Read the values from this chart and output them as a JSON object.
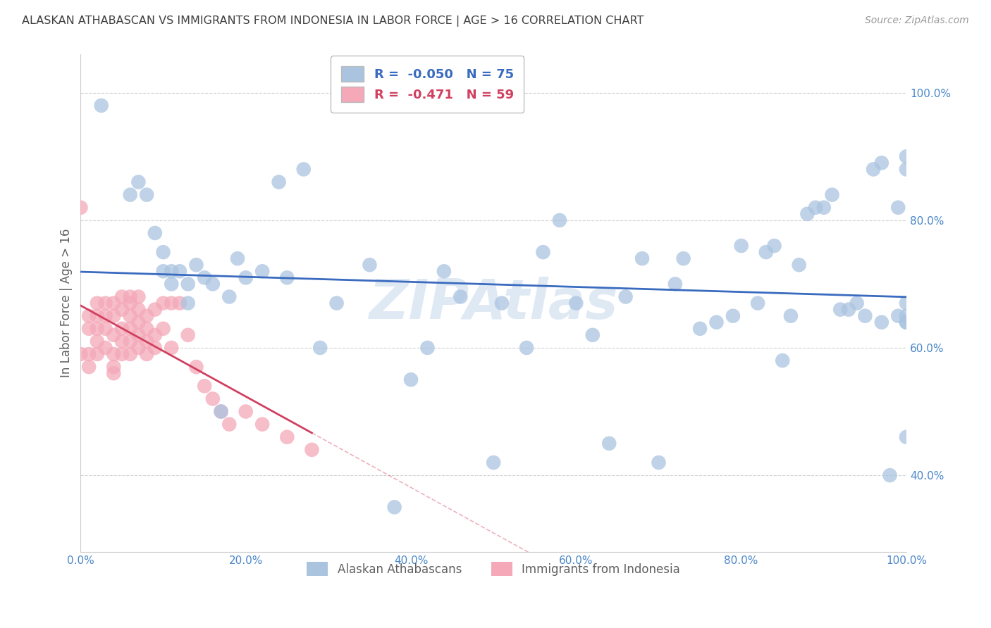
{
  "title": "ALASKAN ATHABASCAN VS IMMIGRANTS FROM INDONESIA IN LABOR FORCE | AGE > 16 CORRELATION CHART",
  "source": "Source: ZipAtlas.com",
  "ylabel": "In Labor Force | Age > 16",
  "watermark": "ZIPAtlas",
  "blue_R": -0.05,
  "blue_N": 75,
  "pink_R": -0.471,
  "pink_N": 59,
  "blue_color": "#aac4e0",
  "pink_color": "#f4a8b8",
  "blue_line_color": "#3a6bbf",
  "pink_line_color": "#d04060",
  "legend_blue_label": "Alaskan Athabascans",
  "legend_pink_label": "Immigrants from Indonesia",
  "xlim": [
    0.0,
    1.0
  ],
  "ylim": [
    0.28,
    1.06
  ],
  "yticks": [
    0.4,
    0.6,
    0.8,
    1.0
  ],
  "xticks": [
    0.0,
    0.2,
    0.4,
    0.6,
    0.8,
    1.0
  ],
  "blue_scatter_x": [
    0.025,
    0.06,
    0.07,
    0.08,
    0.09,
    0.1,
    0.1,
    0.11,
    0.11,
    0.12,
    0.13,
    0.13,
    0.14,
    0.15,
    0.16,
    0.17,
    0.18,
    0.19,
    0.2,
    0.22,
    0.24,
    0.25,
    0.27,
    0.29,
    0.31,
    0.35,
    0.38,
    0.4,
    0.42,
    0.44,
    0.46,
    0.5,
    0.51,
    0.54,
    0.56,
    0.58,
    0.6,
    0.62,
    0.64,
    0.66,
    0.68,
    0.7,
    0.72,
    0.73,
    0.75,
    0.77,
    0.79,
    0.8,
    0.82,
    0.83,
    0.84,
    0.85,
    0.86,
    0.87,
    0.88,
    0.89,
    0.9,
    0.91,
    0.92,
    0.93,
    0.94,
    0.95,
    0.96,
    0.97,
    0.97,
    0.98,
    0.99,
    0.99,
    1.0,
    1.0,
    1.0,
    1.0,
    1.0,
    1.0,
    1.0
  ],
  "blue_scatter_y": [
    0.98,
    0.84,
    0.86,
    0.84,
    0.78,
    0.75,
    0.72,
    0.72,
    0.7,
    0.72,
    0.7,
    0.67,
    0.73,
    0.71,
    0.7,
    0.5,
    0.68,
    0.74,
    0.71,
    0.72,
    0.86,
    0.71,
    0.88,
    0.6,
    0.67,
    0.73,
    0.35,
    0.55,
    0.6,
    0.72,
    0.68,
    0.42,
    0.67,
    0.6,
    0.75,
    0.8,
    0.67,
    0.62,
    0.45,
    0.68,
    0.74,
    0.42,
    0.7,
    0.74,
    0.63,
    0.64,
    0.65,
    0.76,
    0.67,
    0.75,
    0.76,
    0.58,
    0.65,
    0.73,
    0.81,
    0.82,
    0.82,
    0.84,
    0.66,
    0.66,
    0.67,
    0.65,
    0.88,
    0.89,
    0.64,
    0.4,
    0.65,
    0.82,
    0.46,
    0.67,
    0.64,
    0.65,
    0.88,
    0.9,
    0.64
  ],
  "pink_scatter_x": [
    0.0,
    0.0,
    0.01,
    0.01,
    0.01,
    0.01,
    0.02,
    0.02,
    0.02,
    0.02,
    0.02,
    0.03,
    0.03,
    0.03,
    0.03,
    0.04,
    0.04,
    0.04,
    0.04,
    0.04,
    0.04,
    0.05,
    0.05,
    0.05,
    0.05,
    0.05,
    0.06,
    0.06,
    0.06,
    0.06,
    0.06,
    0.06,
    0.07,
    0.07,
    0.07,
    0.07,
    0.07,
    0.08,
    0.08,
    0.08,
    0.08,
    0.09,
    0.09,
    0.09,
    0.1,
    0.1,
    0.11,
    0.11,
    0.12,
    0.13,
    0.14,
    0.15,
    0.16,
    0.17,
    0.18,
    0.2,
    0.22,
    0.25,
    0.28
  ],
  "pink_scatter_y": [
    0.82,
    0.59,
    0.65,
    0.63,
    0.59,
    0.57,
    0.67,
    0.65,
    0.63,
    0.61,
    0.59,
    0.67,
    0.65,
    0.63,
    0.6,
    0.67,
    0.65,
    0.62,
    0.59,
    0.57,
    0.56,
    0.68,
    0.66,
    0.63,
    0.61,
    0.59,
    0.68,
    0.67,
    0.65,
    0.63,
    0.61,
    0.59,
    0.68,
    0.66,
    0.64,
    0.62,
    0.6,
    0.65,
    0.63,
    0.61,
    0.59,
    0.66,
    0.62,
    0.6,
    0.67,
    0.63,
    0.67,
    0.6,
    0.67,
    0.62,
    0.57,
    0.54,
    0.52,
    0.5,
    0.48,
    0.5,
    0.48,
    0.46,
    0.44
  ],
  "grid_color": "#cccccc",
  "background_color": "#ffffff",
  "title_color": "#404040",
  "axis_label_color": "#606060",
  "tick_color": "#4a86c8"
}
